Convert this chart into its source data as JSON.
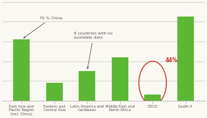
{
  "categories": [
    "East Asia and\nPacific Region\n(Incl. China)",
    "Eastern and\nCentral Asia",
    "Latin America and\nCaribbean",
    "Middle East and\nNorth Africa",
    "OECD",
    "South A"
  ],
  "values": [
    62,
    18,
    30,
    44,
    6,
    85
  ],
  "bar_color": "#5cb834",
  "background_color": "#faf8f2",
  "annotation_china": "70 % China",
  "annotation_countries": "8 countries with no\navailable data",
  "annotation_oecd": "44%",
  "oecd_circle_color": "#c0392b",
  "ylim": [
    0,
    100
  ],
  "gridline_color": "#c8c8c8",
  "text_color": "#555555"
}
